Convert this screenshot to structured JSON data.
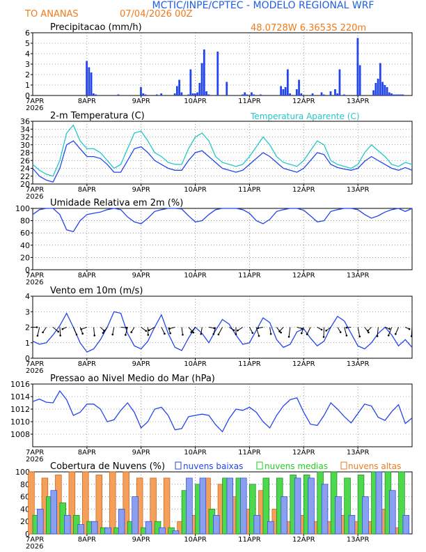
{
  "header": {
    "title": "MCTIC/INPE/CPTEC - MODELO REGIONAL WRF",
    "location": "TO ANANAS",
    "run": "07/04/2026 00Z",
    "coords": "48.0728W 6.3653S 220m"
  },
  "colors": {
    "title": "#1e5de6",
    "orange": "#f07a1a",
    "cyan": "#20c8c8",
    "blue": "#2244ee",
    "green": "#22cc22",
    "orange_fill": "#f5a05a",
    "green_fill": "#4dd84d",
    "blue_fill": "#3355dd"
  },
  "time_axis": {
    "first_label": "7APR",
    "year": "2026",
    "labels": [
      "8APR",
      "9APR",
      "10APR",
      "11APR",
      "12APR",
      "13APR"
    ],
    "days": 7
  },
  "chart_data": [
    {
      "type": "bar",
      "title": "Precipitacao (mm/h)",
      "ylim": [
        0,
        6
      ],
      "yticks": [
        0,
        1,
        2,
        3,
        4,
        5,
        6
      ],
      "series": [
        {
          "name": "Precipitacao",
          "x": [
            24,
            25,
            26,
            27,
            28,
            38,
            48,
            49,
            50,
            55,
            57,
            63,
            64,
            65,
            66,
            69,
            70,
            71,
            72,
            73,
            74,
            75,
            76,
            77,
            78,
            82,
            86,
            93,
            94,
            95,
            97,
            98,
            101,
            110,
            111,
            112,
            113,
            114,
            117,
            118,
            119,
            124,
            128,
            129,
            132,
            134,
            135,
            136,
            138,
            144,
            145,
            151,
            152,
            153,
            154,
            155,
            156,
            157,
            158,
            159,
            160,
            161,
            162,
            163,
            164
          ],
          "values": [
            3.3,
            2.7,
            2.2,
            0.2,
            0.1,
            0.1,
            0.8,
            0.2,
            0.1,
            0.1,
            0.2,
            0.2,
            0.9,
            1.5,
            0.3,
            0.1,
            2.5,
            0.2,
            0.2,
            0.3,
            1.2,
            3.1,
            4.4,
            0.4,
            0.1,
            4.2,
            1.3,
            0.1,
            0.3,
            0.1,
            0.3,
            0.1,
            0.1,
            0.9,
            0.6,
            0.8,
            2.5,
            0.2,
            0.6,
            1.5,
            0.2,
            0.2,
            0.3,
            0.1,
            0.4,
            0.6,
            0.2,
            2.5,
            0.1,
            5.5,
            2.9,
            0.5,
            1.2,
            1.6,
            3.1,
            1.3,
            1.0,
            0.8,
            0.3,
            0.2,
            0.1,
            0.1,
            0.1,
            0.1,
            0.1
          ]
        }
      ]
    },
    {
      "type": "line",
      "title": "2-m Temperatura (C)",
      "ylim": [
        20,
        36
      ],
      "yticks": [
        20,
        22,
        24,
        26,
        28,
        30,
        32,
        34,
        36
      ],
      "series": [
        {
          "name": "Temperatura",
          "x": [
            0,
            3,
            6,
            9,
            12,
            15,
            18,
            21,
            24,
            27,
            30,
            33,
            36,
            39,
            42,
            45,
            48,
            51,
            54,
            57,
            60,
            63,
            66,
            69,
            72,
            75,
            78,
            81,
            84,
            87,
            90,
            93,
            96,
            99,
            102,
            105,
            108,
            111,
            114,
            117,
            120,
            123,
            126,
            129,
            132,
            135,
            138,
            141,
            144,
            147,
            150,
            153,
            156,
            159,
            162,
            165,
            168
          ],
          "values": [
            24,
            22,
            21,
            20.5,
            24,
            30,
            31,
            29,
            27,
            27,
            26.5,
            25,
            23,
            23,
            26,
            29,
            29.5,
            28,
            26,
            25,
            24,
            23.5,
            23.5,
            26,
            28,
            28.5,
            27,
            25.5,
            24,
            23.5,
            23,
            23.5,
            25,
            26.5,
            28,
            27,
            25.5,
            24,
            23.5,
            23,
            24,
            26,
            28,
            27.5,
            25,
            24.2,
            23.8,
            23.5,
            24,
            25.8,
            27,
            26,
            25,
            24,
            23.5,
            24.2,
            23.5
          ]
        },
        {
          "name": "Temperatura Aparente",
          "x": [
            0,
            3,
            6,
            9,
            12,
            15,
            18,
            21,
            24,
            27,
            30,
            33,
            36,
            39,
            42,
            45,
            48,
            51,
            54,
            57,
            60,
            63,
            66,
            69,
            72,
            75,
            78,
            81,
            84,
            87,
            90,
            93,
            96,
            99,
            102,
            105,
            108,
            111,
            114,
            117,
            120,
            123,
            126,
            129,
            132,
            135,
            138,
            141,
            144,
            147,
            150,
            153,
            156,
            159,
            162,
            165,
            168
          ],
          "values": [
            25,
            23.5,
            22.5,
            22,
            26,
            33,
            35,
            31,
            29,
            29,
            28,
            26,
            24,
            25,
            29,
            33,
            33.5,
            31,
            28,
            27,
            25.5,
            25,
            25,
            29,
            32,
            33,
            31,
            27,
            25.5,
            25,
            24.5,
            25,
            27,
            29.5,
            32,
            30,
            27,
            25.5,
            25,
            24.5,
            26,
            28.5,
            31,
            30,
            26,
            25,
            24.5,
            24,
            25,
            28,
            30,
            28.5,
            27,
            25,
            24.5,
            25.5,
            25
          ]
        }
      ]
    },
    {
      "type": "line",
      "title": "Umidade Relativa em 2m (%)",
      "ylim": [
        0,
        100
      ],
      "yticks": [
        0,
        20,
        40,
        60,
        80,
        100
      ],
      "series": [
        {
          "name": "Umidade Relativa",
          "x": [
            0,
            3,
            6,
            9,
            12,
            15,
            18,
            21,
            24,
            27,
            30,
            33,
            36,
            39,
            42,
            45,
            48,
            51,
            54,
            57,
            60,
            63,
            66,
            69,
            72,
            75,
            78,
            81,
            84,
            87,
            90,
            93,
            96,
            99,
            102,
            105,
            108,
            111,
            114,
            117,
            120,
            123,
            126,
            129,
            132,
            135,
            138,
            141,
            144,
            147,
            150,
            153,
            156,
            159,
            162,
            165,
            168
          ],
          "values": [
            90,
            98,
            100,
            100,
            90,
            65,
            62,
            80,
            90,
            92,
            94,
            98,
            100,
            98,
            86,
            78,
            75,
            84,
            95,
            98,
            100,
            100,
            99,
            88,
            78,
            80,
            90,
            98,
            100,
            100,
            100,
            98,
            92,
            80,
            75,
            82,
            95,
            98,
            100,
            100,
            97,
            88,
            78,
            80,
            95,
            98,
            100,
            100,
            98,
            90,
            84,
            88,
            94,
            98,
            100,
            95,
            100
          ]
        }
      ]
    },
    {
      "type": "line",
      "title": "Vento em 10m (m/s)",
      "ylim": [
        0,
        4
      ],
      "yticks": [
        0,
        1,
        2,
        3,
        4
      ],
      "series": [
        {
          "name": "Vento",
          "x": [
            0,
            3,
            6,
            9,
            12,
            15,
            18,
            21,
            24,
            27,
            30,
            33,
            36,
            39,
            42,
            45,
            48,
            51,
            54,
            57,
            60,
            63,
            66,
            69,
            72,
            75,
            78,
            81,
            84,
            87,
            90,
            93,
            96,
            99,
            102,
            105,
            108,
            111,
            114,
            117,
            120,
            123,
            126,
            129,
            132,
            135,
            138,
            141,
            144,
            147,
            150,
            153,
            156,
            159,
            162,
            165,
            168
          ],
          "values": [
            1.1,
            0.9,
            1.0,
            1.5,
            2.1,
            2.9,
            2.0,
            1.0,
            0.4,
            0.6,
            1.2,
            2.0,
            3.0,
            2.9,
            1.6,
            0.8,
            0.6,
            1.1,
            2.0,
            2.8,
            1.6,
            0.7,
            0.5,
            1.3,
            2.0,
            1.6,
            1.0,
            1.8,
            2.5,
            2.2,
            1.5,
            0.9,
            1.0,
            1.8,
            2.6,
            2.3,
            1.2,
            0.7,
            0.9,
            1.7,
            1.9,
            1.3,
            0.8,
            1.1,
            2.0,
            2.7,
            2.4,
            1.6,
            0.8,
            0.6,
            1.0,
            1.6,
            2.0,
            1.5,
            0.8,
            1.2,
            0.7
          ]
        }
      ]
    },
    {
      "type": "line",
      "title": "Pressao ao Nivel Medio do Mar (hPa)",
      "ylim": [
        1006,
        1016
      ],
      "yticks": [
        1008,
        1010,
        1012,
        1014,
        1016
      ],
      "series": [
        {
          "name": "Pressao",
          "x": [
            0,
            3,
            6,
            9,
            12,
            15,
            18,
            21,
            24,
            27,
            30,
            33,
            36,
            39,
            42,
            45,
            48,
            51,
            54,
            57,
            60,
            63,
            66,
            69,
            72,
            75,
            78,
            81,
            84,
            87,
            90,
            93,
            96,
            99,
            102,
            105,
            108,
            111,
            114,
            117,
            120,
            123,
            126,
            129,
            132,
            135,
            138,
            141,
            144,
            147,
            150,
            153,
            156,
            159,
            162,
            165,
            168
          ],
          "values": [
            1013.2,
            1013.6,
            1013.1,
            1013.0,
            1014.9,
            1013.5,
            1011.0,
            1011.5,
            1012.8,
            1012.8,
            1012.0,
            1010.0,
            1010.3,
            1011.8,
            1013.0,
            1011.5,
            1009.0,
            1010.0,
            1012.0,
            1012.3,
            1011.0,
            1008.7,
            1008.9,
            1010.8,
            1011.0,
            1011.2,
            1011.0,
            1009.5,
            1008.4,
            1010.5,
            1012.0,
            1011.8,
            1012.3,
            1011.5,
            1010.0,
            1009.0,
            1011.0,
            1012.5,
            1013.5,
            1013.8,
            1011.5,
            1009.6,
            1009.4,
            1011.0,
            1013.0,
            1012.0,
            1010.8,
            1009.8,
            1011.3,
            1012.8,
            1012.5,
            1010.7,
            1010.2,
            1011.6,
            1012.7,
            1009.7,
            1010.6
          ]
        }
      ]
    },
    {
      "type": "bar",
      "title": "Cobertura de Nuvens (%)",
      "ylim": [
        0,
        100
      ],
      "yticks": [
        0,
        20,
        40,
        60,
        80,
        100
      ],
      "series": [
        {
          "name": "nuvens baixas",
          "x": [
            0,
            6,
            12,
            18,
            24,
            30,
            36,
            42,
            48,
            54,
            60,
            66,
            72,
            78,
            84,
            90,
            96,
            102,
            108,
            114,
            120,
            126,
            132,
            138,
            144,
            150,
            156,
            162,
            168
          ],
          "values": [
            40,
            70,
            30,
            15,
            20,
            10,
            40,
            60,
            20,
            10,
            5,
            90,
            90,
            30,
            90,
            90,
            30,
            20,
            60,
            90,
            90,
            80,
            60,
            30,
            60,
            100,
            70,
            30,
            10
          ]
        },
        {
          "name": "nuvens medias",
          "x": [
            0,
            6,
            12,
            18,
            24,
            30,
            36,
            42,
            48,
            54,
            60,
            66,
            72,
            78,
            84,
            90,
            96,
            102,
            108,
            114,
            120,
            126,
            132,
            138,
            144,
            150,
            156,
            162,
            168
          ],
          "values": [
            30,
            60,
            50,
            30,
            20,
            10,
            10,
            20,
            10,
            20,
            10,
            70,
            80,
            40,
            90,
            90,
            80,
            90,
            90,
            95,
            95,
            100,
            100,
            90,
            95,
            100,
            100,
            100,
            90
          ]
        },
        {
          "name": "nuvens altas",
          "x": [
            0,
            6,
            12,
            18,
            24,
            30,
            36,
            42,
            48,
            54,
            60,
            66,
            72,
            78,
            84,
            90,
            96,
            102,
            108,
            114,
            120,
            126,
            132,
            138,
            144,
            150,
            156,
            162,
            168
          ],
          "values": [
            100,
            90,
            95,
            100,
            100,
            95,
            100,
            100,
            90,
            90,
            90,
            20,
            30,
            90,
            80,
            60,
            40,
            70,
            40,
            20,
            30,
            20,
            20,
            30,
            20,
            20,
            40,
            10,
            0
          ]
        }
      ]
    }
  ],
  "legends": {
    "temp_apparent": "Temperatura Aparente (C)",
    "cloud_low": "nuvens baixas",
    "cloud_mid": "nuvens medias",
    "cloud_high": "nuvens altas"
  }
}
